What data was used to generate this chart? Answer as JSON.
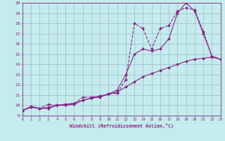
{
  "xlabel": "Windchill (Refroidissement éolien,°C)",
  "bg_color": "#c4ecec",
  "grid_color": "#a0a8cc",
  "line_color": "#882288",
  "xmin": 0,
  "xmax": 23,
  "ymin": 9,
  "ymax": 20,
  "line1_x": [
    0,
    1,
    2,
    3,
    4,
    5,
    6,
    7,
    8,
    9,
    10,
    11,
    12,
    13,
    14,
    15,
    16,
    17,
    18,
    19,
    20,
    21,
    22,
    23
  ],
  "line1_y": [
    9.5,
    9.9,
    9.7,
    10.1,
    10.0,
    10.1,
    10.2,
    10.8,
    10.8,
    10.9,
    11.1,
    11.2,
    12.5,
    18.0,
    17.5,
    15.5,
    17.5,
    17.8,
    19.2,
    19.5,
    19.3,
    17.2,
    14.8,
    14.5
  ],
  "line2_x": [
    0,
    1,
    2,
    3,
    4,
    5,
    6,
    7,
    8,
    9,
    10,
    11,
    12,
    13,
    14,
    15,
    16,
    17,
    18,
    19,
    20,
    21,
    22,
    23
  ],
  "line2_y": [
    9.5,
    9.9,
    9.7,
    9.7,
    10.0,
    10.0,
    10.1,
    10.5,
    10.7,
    10.8,
    11.1,
    11.5,
    13.0,
    15.0,
    15.5,
    15.3,
    15.5,
    16.5,
    19.0,
    20.0,
    19.2,
    17.0,
    14.8,
    14.5
  ],
  "line3_x": [
    0,
    1,
    2,
    3,
    4,
    5,
    6,
    7,
    8,
    9,
    10,
    11,
    12,
    13,
    14,
    15,
    16,
    17,
    18,
    19,
    20,
    21,
    22,
    23
  ],
  "line3_y": [
    9.5,
    9.8,
    9.7,
    9.8,
    10.0,
    10.1,
    10.2,
    10.5,
    10.7,
    10.9,
    11.1,
    11.3,
    11.8,
    12.3,
    12.8,
    13.1,
    13.4,
    13.7,
    14.0,
    14.3,
    14.5,
    14.6,
    14.7,
    14.5
  ]
}
